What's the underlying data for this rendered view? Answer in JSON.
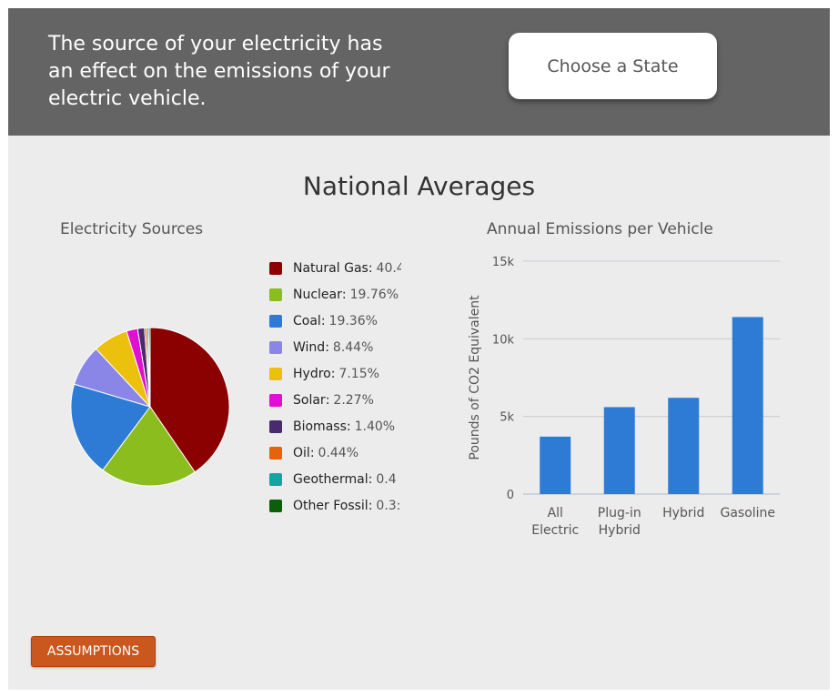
{
  "header": {
    "text": "The source of your electricity has an effect on the emissions of your electric vehicle.",
    "choose_state_label": "Choose a State"
  },
  "section_title": "National Averages",
  "assumptions_label": "ASSUMPTIONS",
  "chart_data": [
    {
      "type": "pie",
      "title": "Electricity Sources",
      "legend_placement": "right",
      "slices": [
        {
          "name": "Natural Gas",
          "value": 40.4,
          "label": "40.4",
          "color": "#8b0000"
        },
        {
          "name": "Nuclear",
          "value": 19.76,
          "label": "19.76%",
          "color": "#8cbd1e"
        },
        {
          "name": "Coal",
          "value": 19.36,
          "label": "19.36%",
          "color": "#2e7bd6"
        },
        {
          "name": "Wind",
          "value": 8.44,
          "label": "8.44%",
          "color": "#8a86e8"
        },
        {
          "name": "Hydro",
          "value": 7.15,
          "label": "7.15%",
          "color": "#ebc10e"
        },
        {
          "name": "Solar",
          "value": 2.27,
          "label": "2.27%",
          "color": "#e00fd2"
        },
        {
          "name": "Biomass",
          "value": 1.4,
          "label": "1.40%",
          "color": "#4a2a6e"
        },
        {
          "name": "Oil",
          "value": 0.44,
          "label": "0.44%",
          "color": "#e8620a"
        },
        {
          "name": "Geothermal",
          "value": 0.4,
          "label": "0.4",
          "color": "#14a5a0"
        },
        {
          "name": "Other Fossil",
          "value": 0.3,
          "label": "0.3:",
          "color": "#0b5e0b"
        }
      ]
    },
    {
      "type": "bar",
      "title": "Annual Emissions per Vehicle",
      "ylabel": "Pounds of CO2 Equivalent",
      "ylim": [
        0,
        15000
      ],
      "yticks": [
        0,
        5000,
        10000,
        15000
      ],
      "ytick_labels": [
        "0",
        "5k",
        "10k",
        "15k"
      ],
      "grid": true,
      "color": "#2e7bd6",
      "categories": [
        [
          "All",
          "Electric"
        ],
        [
          "Plug-in",
          "Hybrid"
        ],
        [
          "Hybrid"
        ],
        [
          "Gasoline"
        ]
      ],
      "values": [
        3700,
        5600,
        6200,
        11400
      ]
    }
  ]
}
